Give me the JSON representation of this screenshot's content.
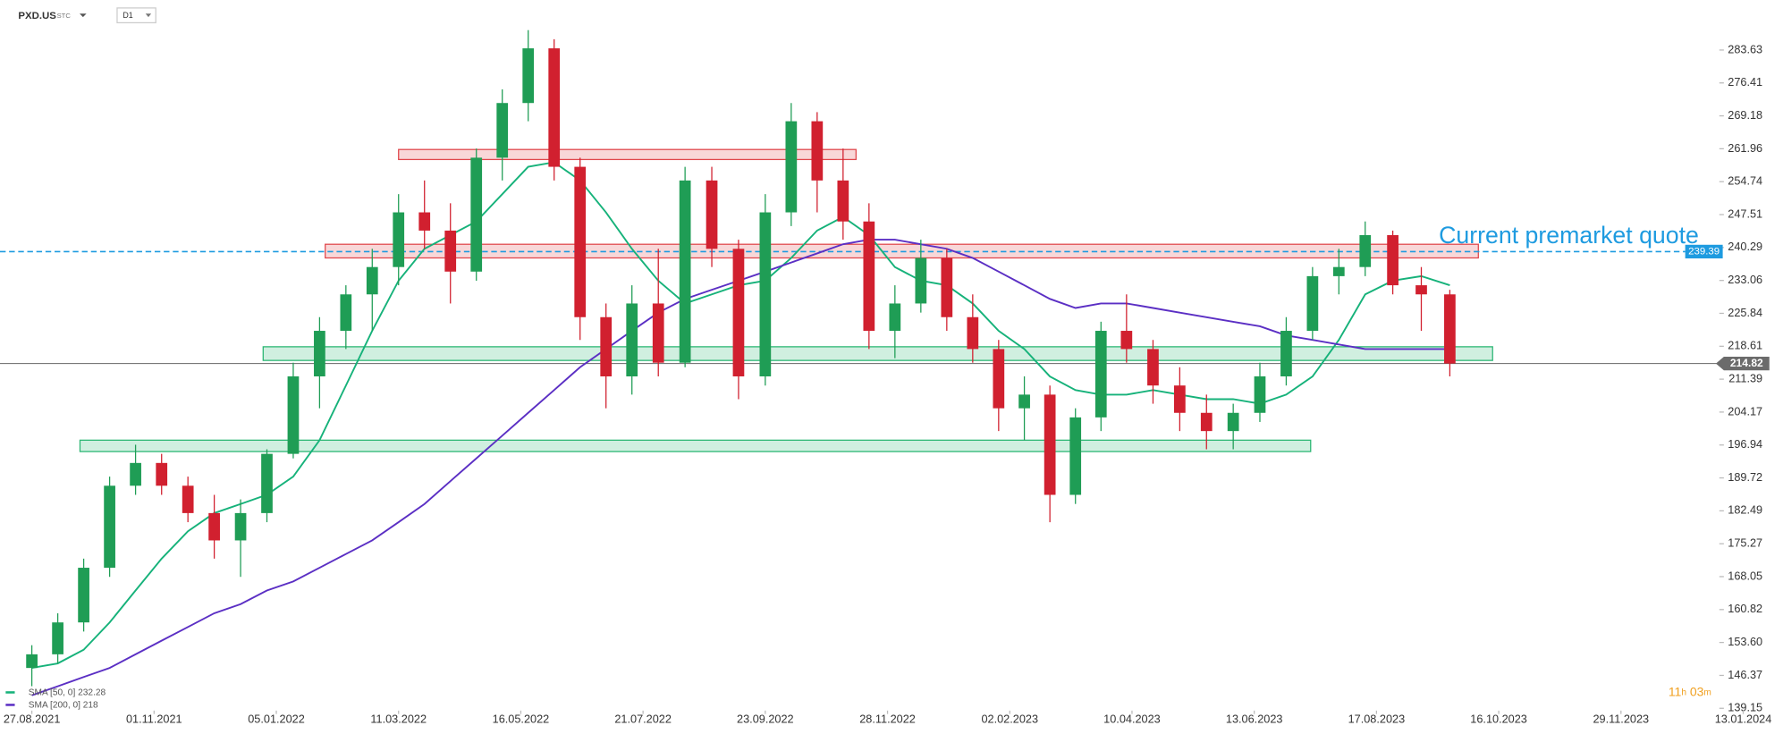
{
  "chart_data": {
    "type": "candlestick",
    "header": {
      "symbol": "PXD.US",
      "market": "STC",
      "interval": "D1"
    },
    "up_color": "#1f9d55",
    "down_color": "#d1202f",
    "x": [
      "27.08.2021",
      "10.09.2021",
      "24.09.2021",
      "08.10.2021",
      "22.10.2021",
      "05.11.2021",
      "19.11.2021",
      "03.12.2021",
      "17.12.2021",
      "31.12.2021",
      "14.01.2022",
      "28.01.2022",
      "11.02.2022",
      "25.02.2022",
      "11.03.2022",
      "25.03.2022",
      "08.04.2022",
      "22.04.2022",
      "06.05.2022",
      "20.05.2022",
      "03.06.2022",
      "17.06.2022",
      "01.07.2022",
      "15.07.2022",
      "29.07.2022",
      "12.08.2022",
      "26.08.2022",
      "09.09.2022",
      "23.09.2022",
      "07.10.2022",
      "21.10.2022",
      "04.11.2022",
      "18.11.2022",
      "02.12.2022",
      "16.12.2022",
      "30.12.2022",
      "13.01.2023",
      "27.01.2023",
      "10.02.2023",
      "24.02.2023",
      "10.03.2023",
      "24.03.2023",
      "07.04.2023",
      "21.04.2023",
      "05.05.2023",
      "19.05.2023",
      "02.06.2023",
      "16.06.2023",
      "30.06.2023",
      "14.07.2023",
      "28.07.2023",
      "11.08.2023",
      "25.08.2023",
      "08.09.2023",
      "22.09.2023"
    ],
    "open": [
      148,
      151,
      158,
      170,
      188,
      193,
      188,
      182,
      176,
      182,
      195,
      212,
      222,
      230,
      236,
      248,
      244,
      235,
      260,
      272,
      284,
      258,
      225,
      212,
      228,
      215,
      255,
      240,
      212,
      248,
      268,
      255,
      246,
      222,
      228,
      238,
      225,
      218,
      205,
      208,
      186,
      203,
      222,
      218,
      210,
      204,
      200,
      204,
      212,
      222,
      234,
      236,
      243,
      232,
      230
    ],
    "high": [
      153,
      160,
      172,
      190,
      197,
      195,
      190,
      186,
      185,
      196,
      215,
      225,
      232,
      240,
      252,
      255,
      250,
      262,
      275,
      288,
      286,
      260,
      228,
      232,
      240,
      258,
      258,
      242,
      252,
      272,
      270,
      262,
      250,
      232,
      242,
      240,
      230,
      220,
      212,
      210,
      205,
      224,
      230,
      220,
      214,
      208,
      206,
      215,
      225,
      236,
      240,
      246,
      244,
      236,
      231
    ],
    "low": [
      144,
      149,
      156,
      168,
      186,
      186,
      180,
      172,
      168,
      180,
      194,
      205,
      218,
      222,
      232,
      240,
      228,
      233,
      255,
      268,
      255,
      220,
      205,
      208,
      212,
      214,
      236,
      207,
      210,
      245,
      248,
      242,
      218,
      216,
      226,
      222,
      215,
      200,
      198,
      180,
      184,
      200,
      215,
      206,
      200,
      196,
      196,
      202,
      210,
      220,
      230,
      234,
      230,
      222,
      212
    ],
    "close": [
      151,
      158,
      170,
      188,
      193,
      188,
      182,
      176,
      182,
      195,
      212,
      222,
      230,
      236,
      248,
      244,
      235,
      260,
      272,
      284,
      258,
      225,
      212,
      228,
      215,
      255,
      240,
      212,
      248,
      268,
      255,
      246,
      222,
      228,
      238,
      225,
      218,
      205,
      208,
      186,
      203,
      222,
      218,
      210,
      204,
      200,
      204,
      212,
      222,
      234,
      236,
      243,
      232,
      230,
      214.82
    ],
    "series": [
      {
        "name": "SMA [50, 0]",
        "current": 232.28,
        "color": "#16b27a",
        "values": [
          148,
          149,
          152,
          158,
          165,
          172,
          178,
          182,
          184,
          186,
          190,
          198,
          210,
          222,
          233,
          240,
          243,
          246,
          252,
          258,
          259,
          255,
          248,
          240,
          233,
          228,
          230,
          232,
          233,
          238,
          244,
          247,
          243,
          236,
          233,
          232,
          228,
          222,
          218,
          212,
          209,
          208,
          208,
          209,
          208,
          207,
          207,
          206,
          208,
          212,
          220,
          230,
          233,
          234,
          232
        ]
      },
      {
        "name": "SMA [200, 0]",
        "current": 218.0,
        "color": "#5b2fc4",
        "values": [
          142,
          144,
          146,
          148,
          151,
          154,
          157,
          160,
          162,
          165,
          167,
          170,
          173,
          176,
          180,
          184,
          189,
          194,
          199,
          204,
          209,
          214,
          218,
          222,
          226,
          229,
          231,
          233,
          235,
          237,
          239,
          241,
          242,
          242,
          241,
          240,
          238,
          235,
          232,
          229,
          227,
          228,
          228,
          227,
          226,
          225,
          224,
          223,
          221,
          220,
          219,
          218,
          218,
          218,
          218
        ]
      }
    ],
    "zones": [
      {
        "from": "11.03.2022",
        "to": "11.11.2022",
        "low": 259.6,
        "high": 261.8,
        "color": "#e0474c"
      },
      {
        "from": "31.01.2022",
        "to": "06.10.2023",
        "low": 238,
        "high": 241,
        "color": "#e0474c"
      },
      {
        "from": "29.12.2021",
        "to": "13.10.2023",
        "low": 215.5,
        "high": 218.5,
        "color": "#2bb673"
      },
      {
        "from": "22.09.2021",
        "to": "13.07.2023",
        "low": 195.5,
        "high": 198,
        "color": "#2bb673"
      }
    ],
    "premarket": {
      "value": 239.39,
      "label": "Current premarket quote",
      "color": "#1e9be0"
    },
    "last_price": 214.82,
    "timer": [
      "11",
      "h",
      "03",
      "m"
    ],
    "ylim": [
      138.65,
      294.61
    ],
    "yticks": [
      283.63,
      276.41,
      269.18,
      261.96,
      254.74,
      247.51,
      240.29,
      233.06,
      225.84,
      218.61,
      211.39,
      204.17,
      196.94,
      189.72,
      182.49,
      175.27,
      168.05,
      160.82,
      {
        "value": 153.6,
        "label": "153.60"
      },
      146.37,
      139.15
    ],
    "xticks": [
      "27.08.2021",
      "01.11.2021",
      "05.01.2022",
      "11.03.2022",
      "16.05.2022",
      "21.07.2022",
      "23.09.2022",
      "28.11.2022",
      "02.02.2023",
      "10.04.2023",
      "13.06.2023",
      "17.08.2023",
      "16.10.2023",
      "29.11.2023",
      "13.01.2024"
    ]
  }
}
